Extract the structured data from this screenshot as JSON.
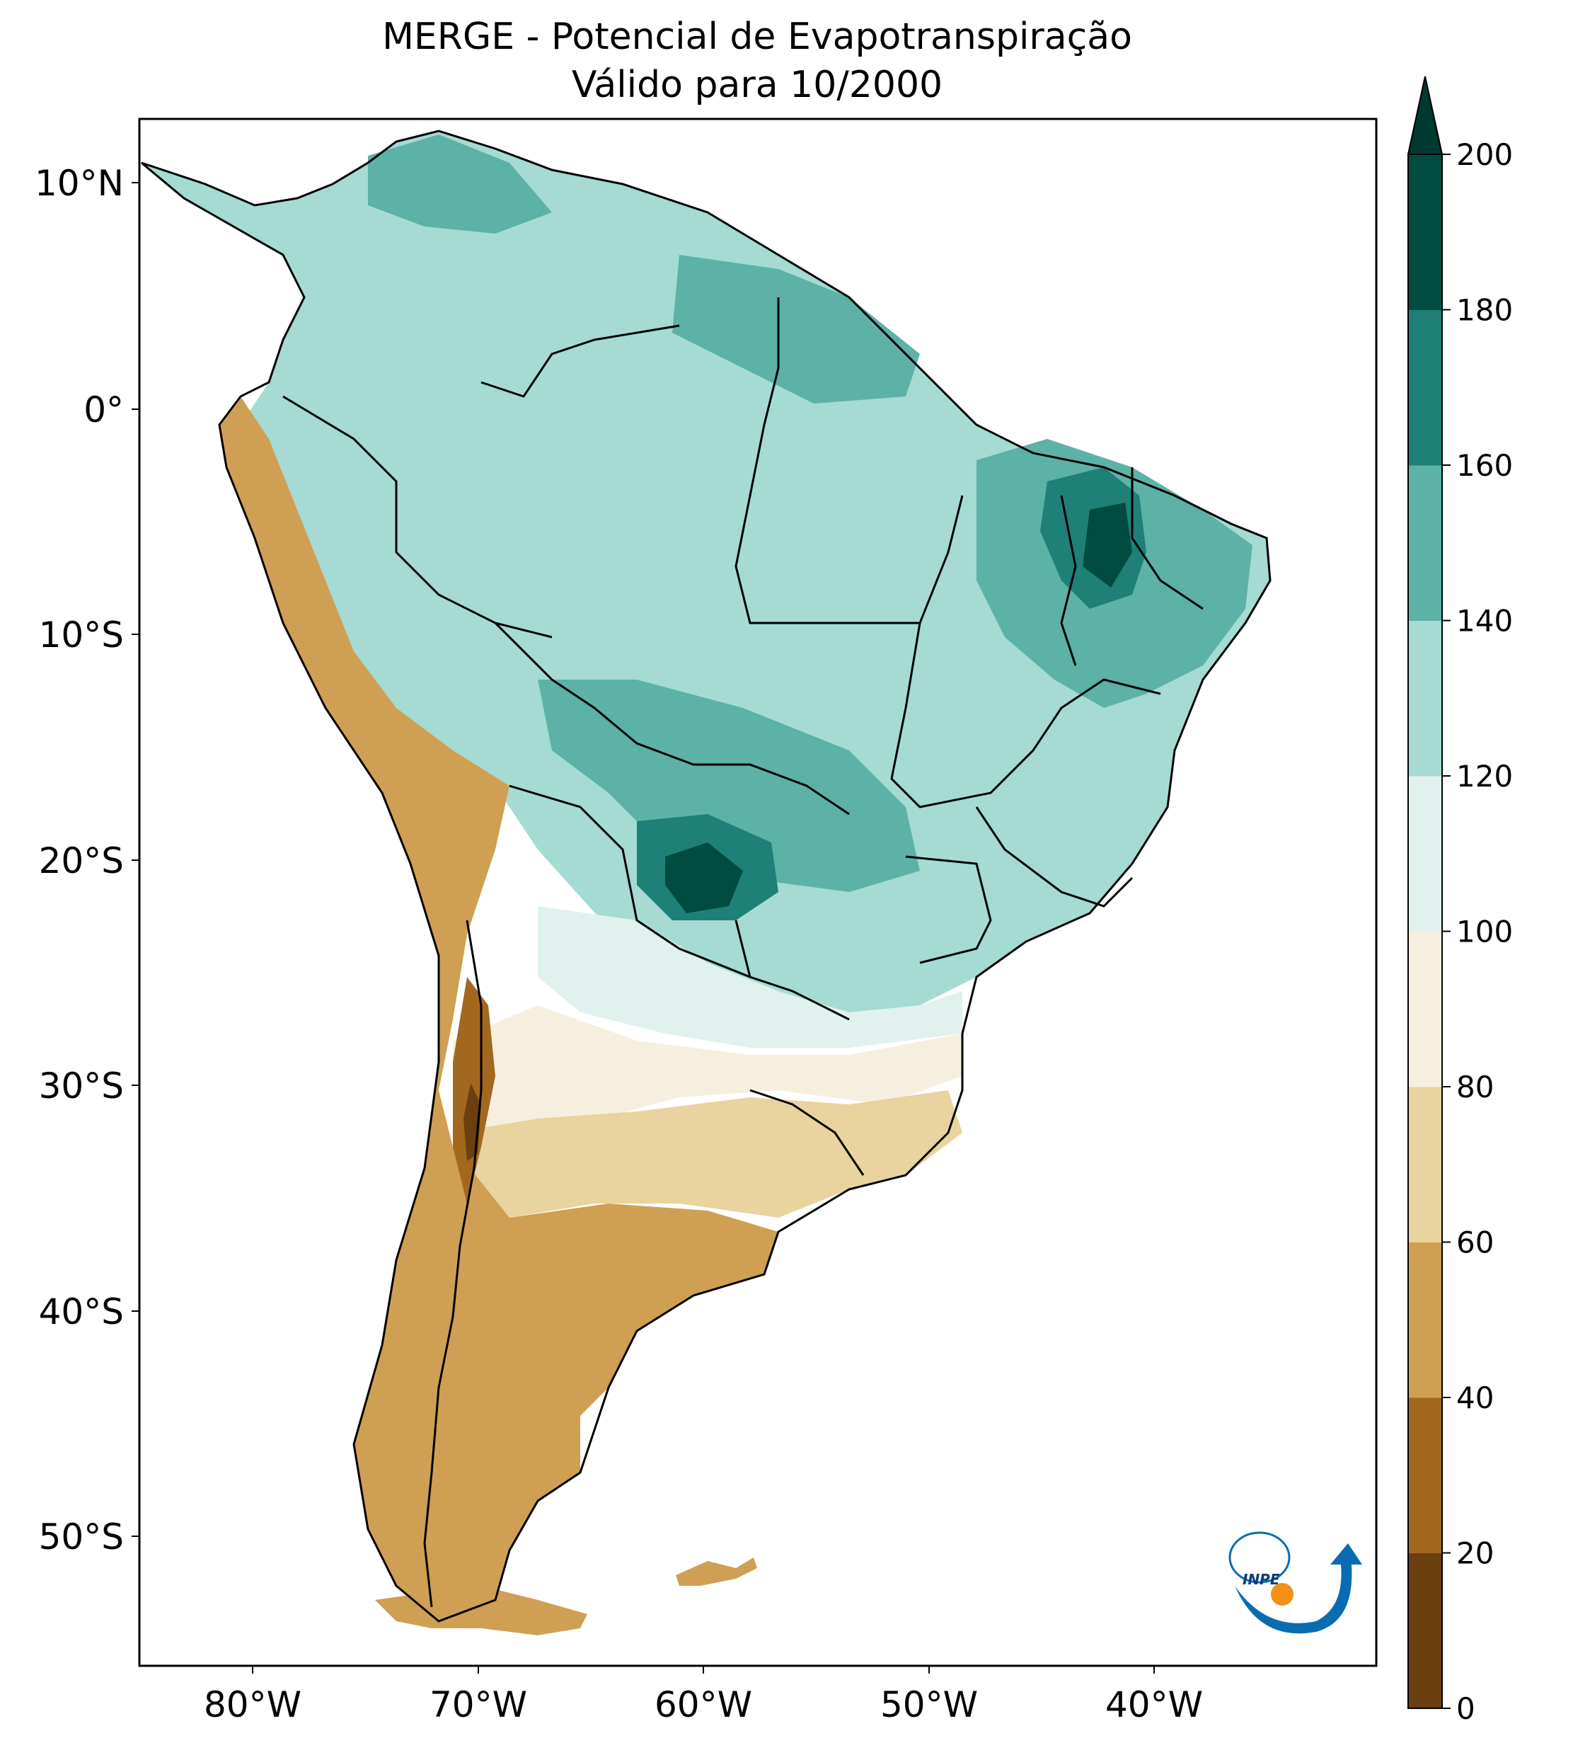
{
  "title": {
    "line1": "MERGE - Potencial de Evapotranspiração",
    "line2": "Válido para 10/2000"
  },
  "axes": {
    "lat_ticks": [
      "10°N",
      "0°",
      "10°S",
      "20°S",
      "30°S",
      "40°S",
      "50°S"
    ],
    "lon_ticks": [
      "80°W",
      "70°W",
      "60°W",
      "50°W",
      "40°W"
    ]
  },
  "colorbar": {
    "ticks": [
      "0",
      "20",
      "40",
      "60",
      "80",
      "100",
      "120",
      "140",
      "160",
      "180",
      "200"
    ],
    "colors": [
      "#6b3f0f",
      "#a3671f",
      "#cfa053",
      "#e9d39e",
      "#f6efdf",
      "#e0f1ee",
      "#a5dbd3",
      "#5cb2a6",
      "#1e8076",
      "#004c40"
    ],
    "extend_color": "#00392f"
  },
  "logo": {
    "name": "INPE"
  }
}
